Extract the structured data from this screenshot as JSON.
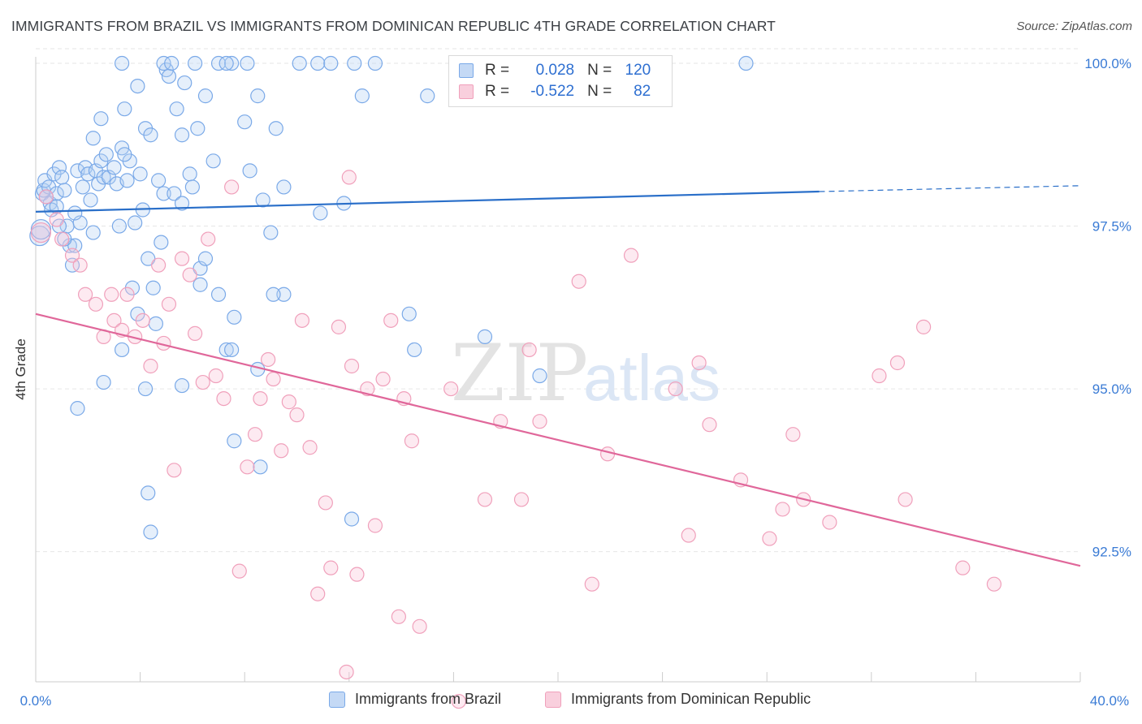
{
  "title": "IMMIGRANTS FROM BRAZIL VS IMMIGRANTS FROM DOMINICAN REPUBLIC 4TH GRADE CORRELATION CHART",
  "source": "Source: ZipAtlas.com",
  "watermark": {
    "zip": "ZIP",
    "atlas": "atlas"
  },
  "legend": {
    "rows": [
      {
        "r_label": "R =",
        "r_value": "0.028",
        "n_label": "N =",
        "n_value": "120",
        "color": "#7aa9e8"
      },
      {
        "r_label": "R =",
        "r_value": "-0.522",
        "n_label": "N =",
        "n_value": "82",
        "color": "#f0a0bb"
      }
    ]
  },
  "chart_data": {
    "type": "scatter",
    "title": "IMMIGRANTS FROM BRAZIL VS IMMIGRANTS FROM DOMINICAN REPUBLIC 4TH GRADE CORRELATION CHART",
    "xlabel": "",
    "ylabel": "4th Grade",
    "xlim": [
      0,
      40
    ],
    "ylim": [
      90.5,
      100.1
    ],
    "x_tick_labels": [
      "0.0%",
      "40.0%"
    ],
    "y_ticks": [
      92.5,
      95.0,
      97.5,
      100.0
    ],
    "y_tick_labels": [
      "92.5%",
      "95.0%",
      "97.5%",
      "100.0%"
    ],
    "grid": true,
    "legend_position": "top-center",
    "series": [
      {
        "name": "Immigrants from Brazil",
        "color": "#7aa9e8",
        "line_color": "#2a6fc9",
        "trend": {
          "x0": 0,
          "y0": 97.72,
          "x1": 30,
          "y1": 98.03,
          "dash_to_x": 40,
          "dash_to_y": 98.12
        },
        "points": [
          [
            0.15,
            97.35
          ],
          [
            0.2,
            97.45
          ],
          [
            0.25,
            98.0
          ],
          [
            0.3,
            98.05
          ],
          [
            0.35,
            98.2
          ],
          [
            0.5,
            98.1
          ],
          [
            0.55,
            97.85
          ],
          [
            0.6,
            97.75
          ],
          [
            0.7,
            98.3
          ],
          [
            0.8,
            98.0
          ],
          [
            0.9,
            98.4
          ],
          [
            1.0,
            98.25
          ],
          [
            1.1,
            98.05
          ],
          [
            1.2,
            97.5
          ],
          [
            1.3,
            97.2
          ],
          [
            1.4,
            96.9
          ],
          [
            1.5,
            97.2
          ],
          [
            1.6,
            98.35
          ],
          [
            1.7,
            97.55
          ],
          [
            1.8,
            98.1
          ],
          [
            1.9,
            98.4
          ],
          [
            2.0,
            98.3
          ],
          [
            2.1,
            97.9
          ],
          [
            2.2,
            97.4
          ],
          [
            2.3,
            98.35
          ],
          [
            2.4,
            98.15
          ],
          [
            2.5,
            98.5
          ],
          [
            2.6,
            98.25
          ],
          [
            2.7,
            98.6
          ],
          [
            2.8,
            98.25
          ],
          [
            3.0,
            98.4
          ],
          [
            3.1,
            98.15
          ],
          [
            3.2,
            97.5
          ],
          [
            3.3,
            98.7
          ],
          [
            3.4,
            99.3
          ],
          [
            3.5,
            98.2
          ],
          [
            3.6,
            98.5
          ],
          [
            3.7,
            96.55
          ],
          [
            3.8,
            97.55
          ],
          [
            3.9,
            99.65
          ],
          [
            4.0,
            98.3
          ],
          [
            4.1,
            97.75
          ],
          [
            4.2,
            99.0
          ],
          [
            4.3,
            97.0
          ],
          [
            4.4,
            98.9
          ],
          [
            4.5,
            96.55
          ],
          [
            4.6,
            96.0
          ],
          [
            4.7,
            98.2
          ],
          [
            4.8,
            97.25
          ],
          [
            4.9,
            98.0
          ],
          [
            5.0,
            99.9
          ],
          [
            5.1,
            99.8
          ],
          [
            5.3,
            98.0
          ],
          [
            5.4,
            99.3
          ],
          [
            5.6,
            97.85
          ],
          [
            5.7,
            99.7
          ],
          [
            5.9,
            98.3
          ],
          [
            6.0,
            98.1
          ],
          [
            6.2,
            99.0
          ],
          [
            6.3,
            96.85
          ],
          [
            6.5,
            97.0
          ],
          [
            6.8,
            98.5
          ],
          [
            7.0,
            96.45
          ],
          [
            7.3,
            95.6
          ],
          [
            7.6,
            96.1
          ],
          [
            8.2,
            98.35
          ],
          [
            8.5,
            99.5
          ],
          [
            8.7,
            97.9
          ],
          [
            9.0,
            97.4
          ],
          [
            9.5,
            98.1
          ],
          [
            10.1,
            100.0
          ],
          [
            10.8,
            100.0
          ],
          [
            11.3,
            100.0
          ],
          [
            11.8,
            97.85
          ],
          [
            12.2,
            100.0
          ],
          [
            13.0,
            100.0
          ],
          [
            15.0,
            99.5
          ],
          [
            14.5,
            95.6
          ],
          [
            17.2,
            95.8
          ],
          [
            27.2,
            100.0
          ],
          [
            3.3,
            95.6
          ],
          [
            4.2,
            95.0
          ],
          [
            5.6,
            95.05
          ],
          [
            4.3,
            93.4
          ],
          [
            4.4,
            92.8
          ],
          [
            7.6,
            94.2
          ],
          [
            8.6,
            93.8
          ],
          [
            12.1,
            93.0
          ],
          [
            14.3,
            96.15
          ],
          [
            19.3,
            95.2
          ],
          [
            9.5,
            96.45
          ],
          [
            9.1,
            96.45
          ],
          [
            6.3,
            96.6
          ],
          [
            3.9,
            96.15
          ],
          [
            2.6,
            95.1
          ],
          [
            1.6,
            94.7
          ],
          [
            12.5,
            99.5
          ],
          [
            10.9,
            97.7
          ],
          [
            7.5,
            95.6
          ],
          [
            8.5,
            95.3
          ],
          [
            2.2,
            98.85
          ],
          [
            2.5,
            99.15
          ],
          [
            3.4,
            98.6
          ],
          [
            5.6,
            98.9
          ],
          [
            6.5,
            99.5
          ],
          [
            7.0,
            100.0
          ],
          [
            7.5,
            100.0
          ],
          [
            8.0,
            99.1
          ],
          [
            9.2,
            99.0
          ],
          [
            4.9,
            100.0
          ],
          [
            5.2,
            100.0
          ],
          [
            6.1,
            100.0
          ],
          [
            7.3,
            100.0
          ],
          [
            8.1,
            100.0
          ],
          [
            3.3,
            100.0
          ],
          [
            1.1,
            97.3
          ],
          [
            0.9,
            97.5
          ],
          [
            0.4,
            97.95
          ],
          [
            0.8,
            97.8
          ],
          [
            1.5,
            97.7
          ]
        ]
      },
      {
        "name": "Immigrants from Dominican Republic",
        "color": "#f0a0bb",
        "line_color": "#e0679a",
        "trend": {
          "x0": 0,
          "y0": 96.15,
          "x1": 40,
          "y1": 92.28
        },
        "points": [
          [
            0.2,
            97.4
          ],
          [
            0.4,
            97.95
          ],
          [
            0.8,
            97.6
          ],
          [
            1.0,
            97.3
          ],
          [
            1.4,
            97.05
          ],
          [
            1.7,
            96.9
          ],
          [
            1.9,
            96.45
          ],
          [
            2.3,
            96.3
          ],
          [
            2.6,
            95.8
          ],
          [
            2.9,
            96.45
          ],
          [
            3.0,
            96.05
          ],
          [
            3.3,
            95.9
          ],
          [
            3.5,
            96.45
          ],
          [
            3.8,
            95.8
          ],
          [
            4.1,
            96.05
          ],
          [
            4.4,
            95.35
          ],
          [
            4.7,
            96.9
          ],
          [
            4.9,
            95.7
          ],
          [
            5.1,
            96.3
          ],
          [
            5.3,
            93.75
          ],
          [
            5.6,
            97.0
          ],
          [
            5.9,
            96.75
          ],
          [
            6.1,
            95.85
          ],
          [
            6.4,
            95.1
          ],
          [
            6.6,
            97.3
          ],
          [
            6.9,
            95.2
          ],
          [
            7.2,
            94.85
          ],
          [
            7.5,
            98.1
          ],
          [
            7.8,
            92.2
          ],
          [
            8.1,
            93.8
          ],
          [
            8.4,
            94.3
          ],
          [
            8.6,
            94.85
          ],
          [
            8.9,
            95.45
          ],
          [
            9.1,
            95.15
          ],
          [
            9.4,
            94.05
          ],
          [
            9.7,
            94.8
          ],
          [
            10.0,
            94.6
          ],
          [
            10.2,
            96.05
          ],
          [
            10.5,
            94.1
          ],
          [
            10.8,
            91.85
          ],
          [
            11.1,
            93.25
          ],
          [
            11.3,
            92.25
          ],
          [
            11.6,
            95.95
          ],
          [
            11.9,
            90.65
          ],
          [
            12.1,
            95.35
          ],
          [
            12.3,
            92.15
          ],
          [
            12.7,
            95.0
          ],
          [
            13.0,
            92.9
          ],
          [
            13.3,
            95.15
          ],
          [
            13.6,
            96.05
          ],
          [
            13.9,
            91.5
          ],
          [
            14.1,
            94.85
          ],
          [
            14.4,
            94.2
          ],
          [
            14.7,
            91.35
          ],
          [
            15.9,
            95.0
          ],
          [
            16.2,
            90.2
          ],
          [
            17.2,
            93.3
          ],
          [
            17.8,
            94.5
          ],
          [
            18.6,
            93.3
          ],
          [
            18.9,
            95.6
          ],
          [
            19.3,
            94.5
          ],
          [
            20.8,
            96.65
          ],
          [
            21.3,
            92.0
          ],
          [
            21.9,
            94.0
          ],
          [
            22.8,
            97.05
          ],
          [
            24.5,
            95.0
          ],
          [
            25.0,
            92.75
          ],
          [
            25.4,
            95.4
          ],
          [
            25.8,
            94.45
          ],
          [
            27.0,
            93.6
          ],
          [
            28.1,
            92.7
          ],
          [
            28.6,
            93.15
          ],
          [
            29.0,
            94.3
          ],
          [
            29.4,
            93.3
          ],
          [
            30.4,
            92.95
          ],
          [
            32.3,
            95.2
          ],
          [
            33.0,
            95.4
          ],
          [
            33.3,
            93.3
          ],
          [
            34.0,
            95.95
          ],
          [
            35.5,
            92.25
          ],
          [
            36.7,
            92.0
          ],
          [
            12.0,
            98.25
          ]
        ]
      }
    ]
  },
  "bottom_legend": [
    {
      "label": "Immigrants from Brazil",
      "color": "#7aa9e8"
    },
    {
      "label": "Immigrants from Dominican Republic",
      "color": "#f0a0bb"
    }
  ]
}
